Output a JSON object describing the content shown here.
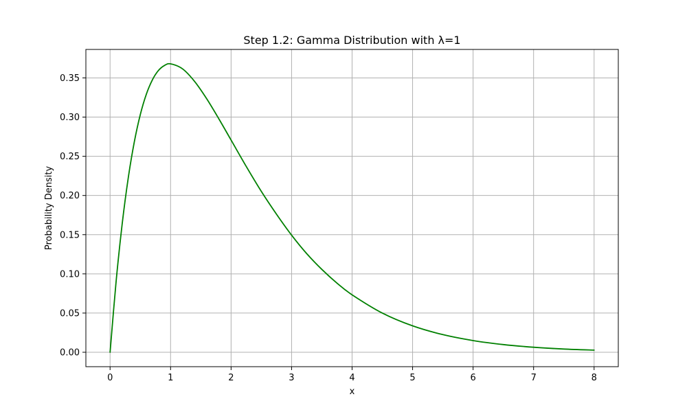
{
  "chart_data": {
    "type": "line",
    "title": "Step 1.2: Gamma Distribution with λ=1",
    "xlabel": "x",
    "ylabel": "Probability Density",
    "xlim": [
      -0.4,
      8.4
    ],
    "ylim": [
      -0.0184,
      0.3863
    ],
    "grid": true,
    "x_ticks": [
      0,
      1,
      2,
      3,
      4,
      5,
      6,
      7,
      8
    ],
    "x_tick_labels": [
      "0",
      "1",
      "2",
      "3",
      "4",
      "5",
      "6",
      "7",
      "8"
    ],
    "y_ticks": [
      0.0,
      0.05,
      0.1,
      0.15,
      0.2,
      0.25,
      0.3,
      0.35
    ],
    "y_tick_labels": [
      "0.00",
      "0.05",
      "0.10",
      "0.15",
      "0.20",
      "0.25",
      "0.30",
      "0.35"
    ],
    "series": [
      {
        "color": "#008000",
        "x": [
          0,
          0.1,
          0.2,
          0.3,
          0.4,
          0.5,
          0.6,
          0.7,
          0.8,
          0.9,
          1.0,
          1.2,
          1.4,
          1.6,
          1.8,
          2.0,
          2.25,
          2.5,
          2.75,
          3.0,
          3.25,
          3.5,
          3.75,
          4.0,
          4.5,
          5.0,
          5.5,
          6.0,
          6.5,
          7.0,
          7.5,
          8.0
        ],
        "y": [
          0.0,
          0.0905,
          0.1637,
          0.2222,
          0.2681,
          0.3033,
          0.3293,
          0.3476,
          0.3595,
          0.3659,
          0.3679,
          0.3614,
          0.3452,
          0.323,
          0.2975,
          0.2707,
          0.2371,
          0.2052,
          0.1762,
          0.1494,
          0.1258,
          0.1057,
          0.0882,
          0.0733,
          0.05,
          0.0337,
          0.0225,
          0.0149,
          0.0098,
          0.0064,
          0.0041,
          0.0027
        ]
      }
    ]
  }
}
